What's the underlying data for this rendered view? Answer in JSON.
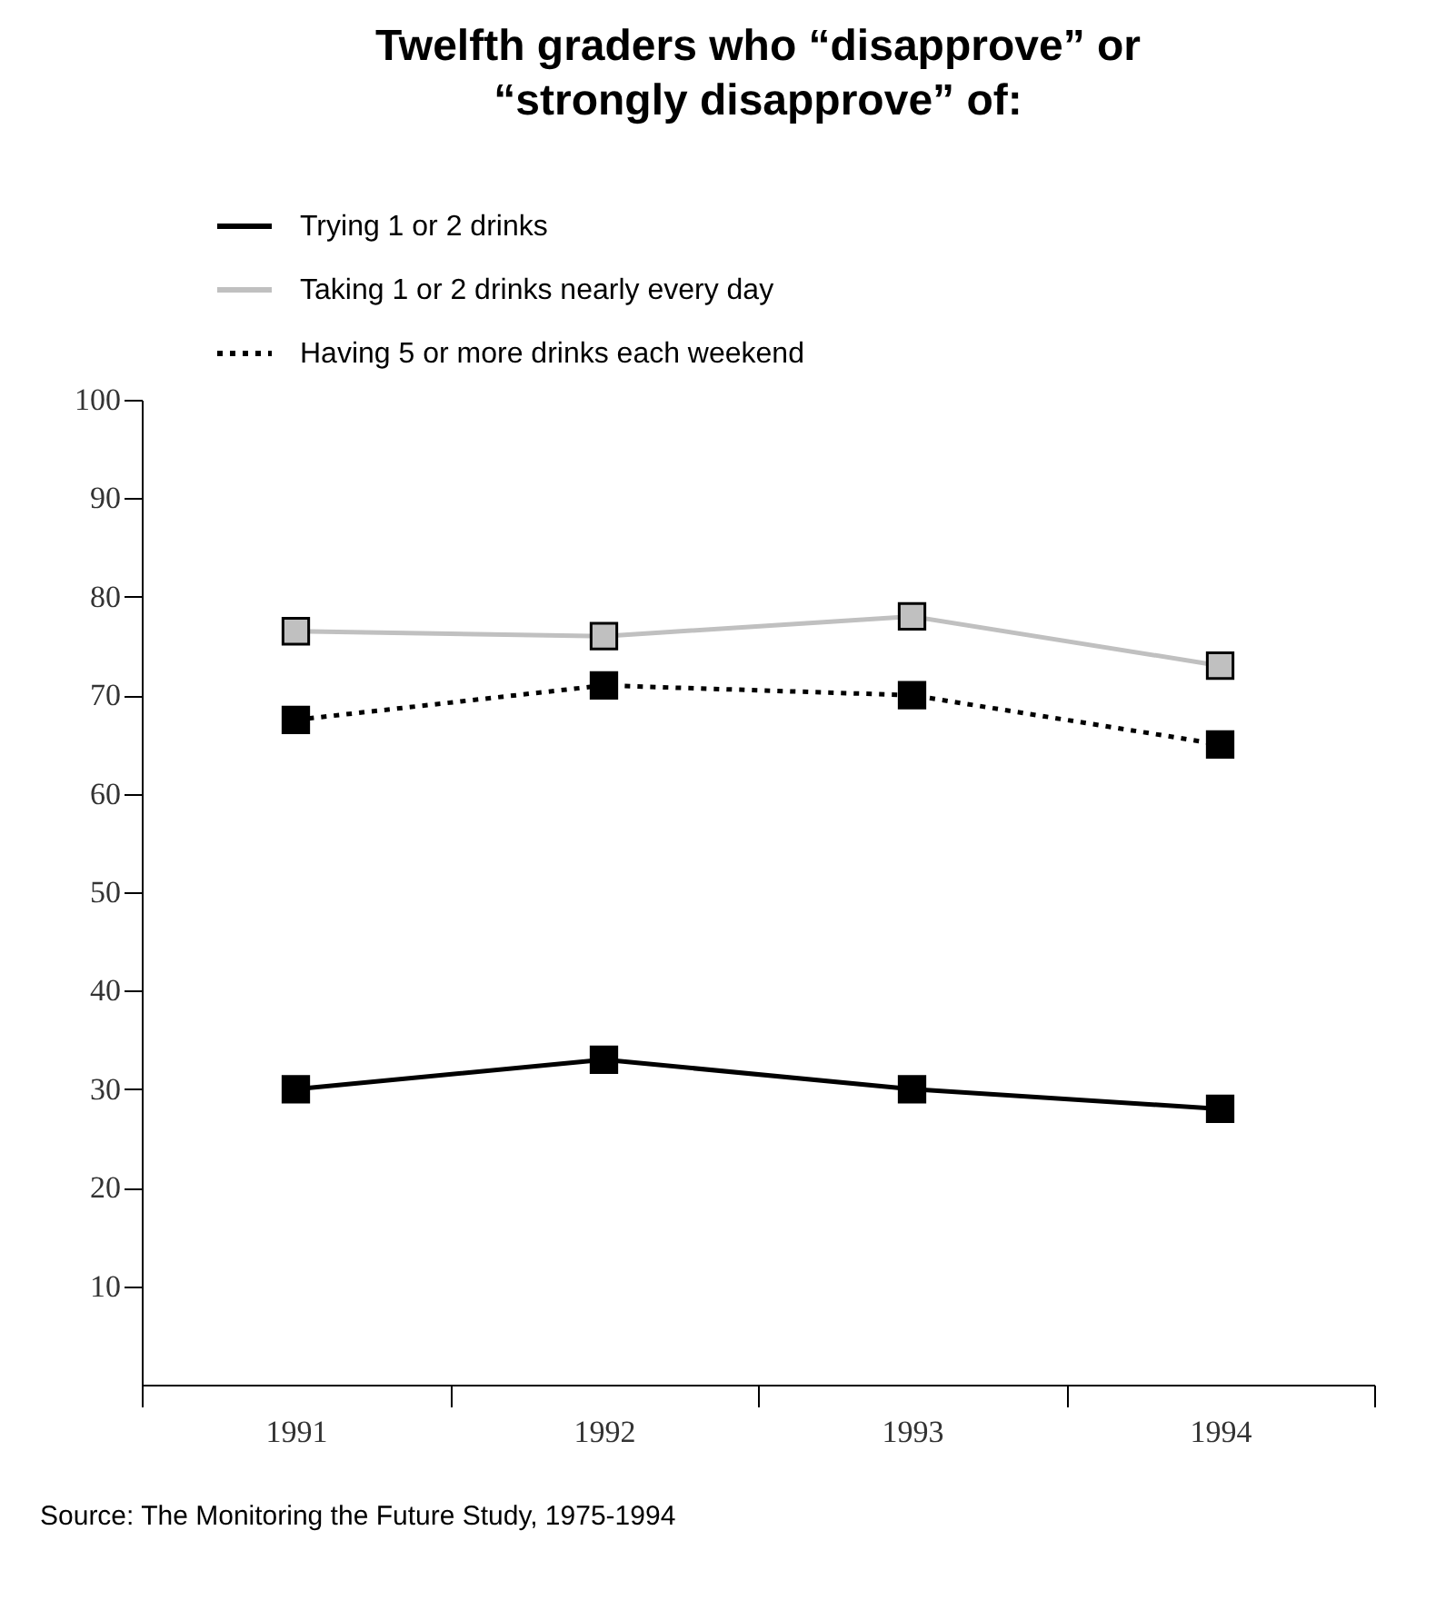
{
  "chart_data": {
    "type": "line",
    "title": "Twelfth graders who “disapprove” or “strongly disapprove” of:",
    "categories": [
      "1991",
      "1992",
      "1993",
      "1994"
    ],
    "series": [
      {
        "name": "Trying 1 or 2 drinks",
        "color": "#000000",
        "line_style": "solid",
        "values": [
          30,
          33,
          30,
          28
        ]
      },
      {
        "name": "Taking 1 or 2 drinks nearly every day",
        "color": "#c0c0c0",
        "line_style": "solid",
        "values": [
          76.5,
          76,
          78,
          73
        ]
      },
      {
        "name": "Having 5 or more drinks each weekend",
        "color": "#000000",
        "line_style": "dotted",
        "values": [
          67.5,
          71,
          70,
          65
        ]
      }
    ],
    "ylim": [
      0,
      100
    ],
    "yticks": [
      10,
      20,
      30,
      40,
      50,
      60,
      70,
      80,
      90,
      100
    ],
    "grid": false,
    "legend": "top left",
    "marker": "square",
    "annotations": [
      "Source: The Monitoring the Future Study, 1975-1994"
    ]
  }
}
